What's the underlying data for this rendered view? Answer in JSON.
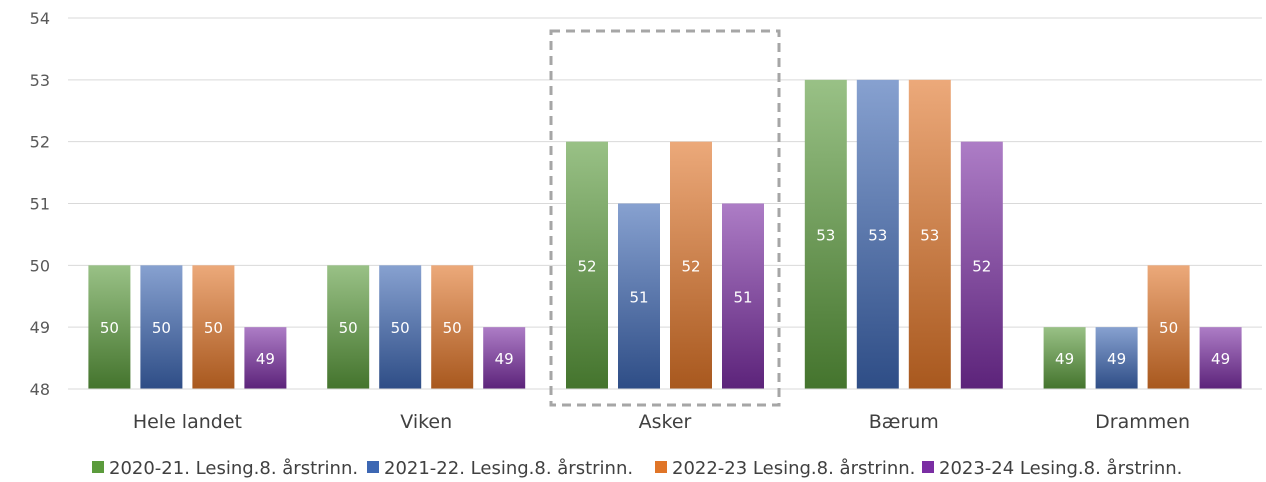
{
  "chart_data": {
    "type": "bar",
    "categories": [
      "Hele landet",
      "Viken",
      "Asker",
      "Bærum",
      "Drammen"
    ],
    "series": [
      {
        "name": "2020-21. Lesing.8. årstrinn.",
        "values": [
          50,
          50,
          52,
          53,
          49
        ],
        "color": "#5b9b3c"
      },
      {
        "name": "2021-22. Lesing.8. årstrinn.",
        "values": [
          50,
          50,
          51,
          53,
          49
        ],
        "color": "#3d67b3"
      },
      {
        "name": "2022-23 Lesing.8. årstrinn.",
        "values": [
          50,
          50,
          52,
          53,
          50
        ],
        "color": "#e07528"
      },
      {
        "name": "2023-24 Lesing.8. årstrinn.",
        "values": [
          49,
          49,
          51,
          52,
          49
        ],
        "color": "#7a2ea3"
      }
    ],
    "ylim": [
      48,
      54
    ],
    "yticks": [
      48,
      49,
      50,
      51,
      52,
      53,
      54
    ],
    "grid": true,
    "legend": "bottom",
    "highlighted_category": "Asker",
    "data_labels": true
  }
}
